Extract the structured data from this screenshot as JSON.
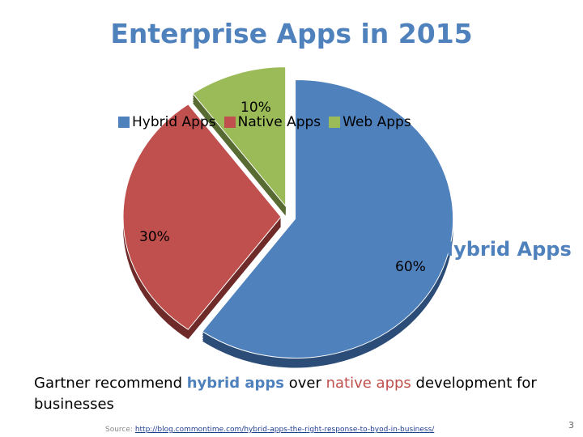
{
  "slide": {
    "title": "Enterprise Apps in 2015",
    "caption": {
      "prefix": "Gartner recommend ",
      "hybrid": "hybrid apps",
      "middle": " over ",
      "native": "native apps",
      "suffix": " development for businesses"
    },
    "source_label": "Source: ",
    "source_link": "http://blog.commontime.com/hybrid-apps-the-right-response-to-byod-in-business/",
    "page_number": "3",
    "callout": "Hybrid Apps"
  },
  "chart_data": {
    "type": "pie",
    "title": "Enterprise Apps in 2015",
    "legend_position": "top",
    "slices": [
      {
        "name": "Hybrid Apps",
        "value": 60,
        "label": "60%",
        "color": "#4f81bd"
      },
      {
        "name": "Native Apps",
        "value": 30,
        "label": "30%",
        "color": "#c0504d"
      },
      {
        "name": "Web Apps",
        "value": 10,
        "label": "10%",
        "color": "#9bbb59"
      }
    ]
  }
}
